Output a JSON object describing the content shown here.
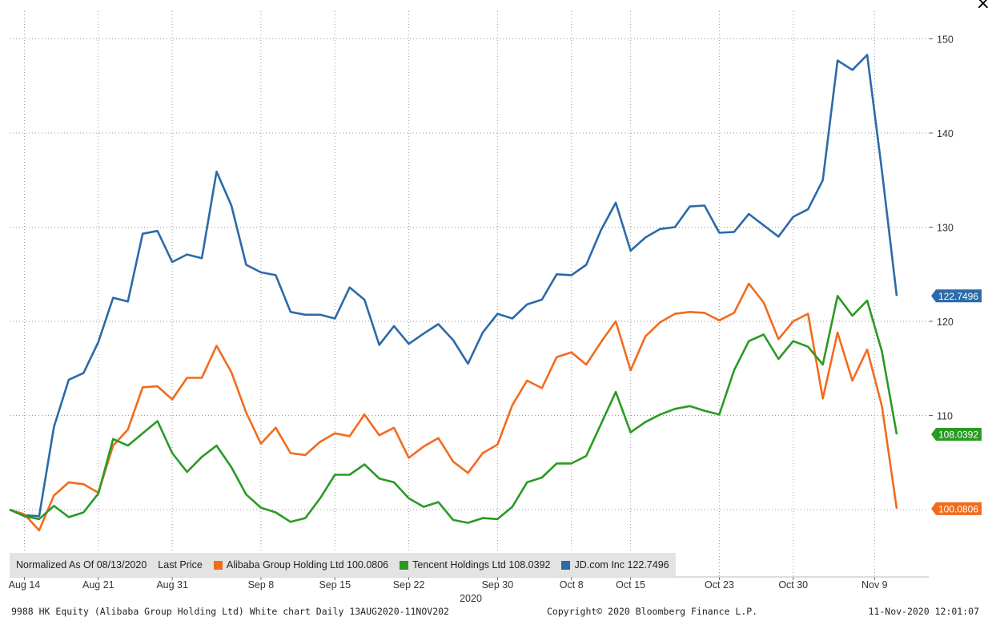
{
  "chart_data": {
    "type": "line",
    "title": "",
    "xlabel": "2020",
    "ylabel": "",
    "ylim": [
      92,
      153
    ],
    "y_ticks": [
      150,
      140,
      130,
      120,
      110
    ],
    "x_tick_labels": [
      "Aug 14",
      "Aug 21",
      "Aug 31",
      "Sep 8",
      "Sep 15",
      "Sep 22",
      "Sep 30",
      "Oct 8",
      "Oct 15",
      "Oct 23",
      "Oct 30",
      "Nov 9"
    ],
    "x_tick_index": [
      1,
      6,
      11,
      17,
      22,
      27,
      33,
      38,
      42,
      48,
      53,
      58.5
    ],
    "grid": true,
    "series": [
      {
        "name": "JD.com Inc",
        "color": "#2c6aa8",
        "last": "122.7496",
        "values": [
          100,
          99.4,
          99.3,
          108.8,
          113.8,
          114.5,
          117.8,
          122.5,
          122.1,
          129.3,
          129.6,
          126.3,
          127.1,
          126.7,
          135.9,
          132.3,
          126.0,
          125.2,
          124.9,
          121.0,
          120.7,
          120.7,
          120.3,
          123.6,
          122.3,
          117.5,
          119.5,
          117.6,
          118.7,
          119.7,
          118.0,
          115.5,
          118.8,
          120.8,
          120.3,
          121.8,
          122.3,
          125.0,
          124.9,
          126.0,
          129.7,
          132.6,
          127.5,
          128.9,
          129.8,
          130.0,
          132.2,
          132.3,
          129.4,
          129.5,
          131.4,
          130.2,
          129.0,
          131.1,
          131.9,
          135.0,
          147.7,
          146.7,
          148.3,
          136.0,
          122.7
        ]
      },
      {
        "name": "Alibaba Group Holding Ltd",
        "color": "#f26b1d",
        "last": "100.0806",
        "values": [
          100,
          99.5,
          97.8,
          101.5,
          102.9,
          102.7,
          101.8,
          106.8,
          108.5,
          113.0,
          113.1,
          111.7,
          114.0,
          114.0,
          117.4,
          114.6,
          110.3,
          107.0,
          108.7,
          106.0,
          105.8,
          107.2,
          108.1,
          107.8,
          110.1,
          107.9,
          108.7,
          105.5,
          106.7,
          107.6,
          105.1,
          103.9,
          106.0,
          106.9,
          111.1,
          113.7,
          112.9,
          116.2,
          116.7,
          115.4,
          117.8,
          120.0,
          114.8,
          118.4,
          119.9,
          120.8,
          121.0,
          120.9,
          120.1,
          120.9,
          124.0,
          122.0,
          118.1,
          120.0,
          120.8,
          111.8,
          118.8,
          113.7,
          117.0,
          111.0,
          100.1
        ]
      },
      {
        "name": "Tencent Holdings Ltd",
        "color": "#2a9a24",
        "last": "108.0392",
        "values": [
          100,
          99.3,
          99.0,
          100.4,
          99.2,
          99.7,
          101.7,
          107.5,
          106.8,
          108.1,
          109.4,
          106.0,
          104.0,
          105.6,
          106.8,
          104.5,
          101.6,
          100.2,
          99.7,
          98.7,
          99.1,
          101.2,
          103.7,
          103.7,
          104.8,
          103.3,
          102.9,
          101.2,
          100.3,
          100.8,
          98.9,
          98.6,
          99.1,
          99.0,
          100.3,
          102.9,
          103.4,
          104.9,
          104.9,
          105.7,
          109.1,
          112.5,
          108.2,
          109.3,
          110.1,
          110.7,
          111.0,
          110.5,
          110.1,
          114.8,
          117.9,
          118.6,
          116.0,
          117.9,
          117.3,
          115.4,
          122.7,
          120.6,
          122.2,
          116.8,
          108.0
        ]
      }
    ]
  },
  "legend": {
    "prefix": "Normalized As Of 08/13/2020",
    "price_label": "Last Price",
    "items": [
      {
        "text": "Alibaba Group Holding Ltd 100.0806",
        "color": "#f26b1d"
      },
      {
        "text": "Tencent Holdings Ltd 108.0392",
        "color": "#2a9a24"
      },
      {
        "text": "JD.com Inc 122.7496",
        "color": "#2c6aa8"
      }
    ]
  },
  "footer": {
    "left": "9988 HK Equity (Alibaba Group Holding Ltd) White chart  Daily 13AUG2020-11NOV202",
    "center": "Copyright© 2020 Bloomberg Finance L.P.",
    "right": "11-Nov-2020 12:01:07"
  },
  "close_icon": "close-icon"
}
